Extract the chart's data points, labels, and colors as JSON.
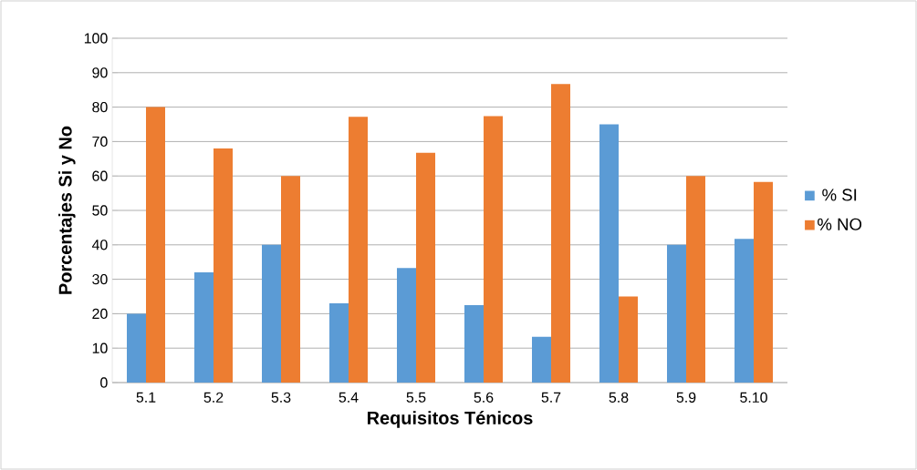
{
  "chart_data": {
    "type": "bar",
    "xlabel": "Requisitos Ténicos",
    "ylabel": "Porcentajes Si y No",
    "categories": [
      "5.1",
      "5.2",
      "5.3",
      "5.4",
      "5.5",
      "5.6",
      "5.7",
      "5.8",
      "5.9",
      "5.10"
    ],
    "series": [
      {
        "name": "% SI",
        "color": "#5b9bd5",
        "values": [
          20,
          32,
          40,
          23,
          33.3,
          22.5,
          13.3,
          75,
          40,
          41.7
        ]
      },
      {
        "name": "% NO",
        "color": "#ed7d31",
        "values": [
          80,
          68,
          60,
          77.2,
          66.7,
          77.4,
          86.7,
          25,
          60,
          58.3
        ]
      }
    ],
    "ylim": [
      0,
      100
    ],
    "yticks": [
      0,
      10,
      20,
      30,
      40,
      50,
      60,
      70,
      80,
      90,
      100
    ],
    "grid": "y",
    "legend": "right"
  }
}
